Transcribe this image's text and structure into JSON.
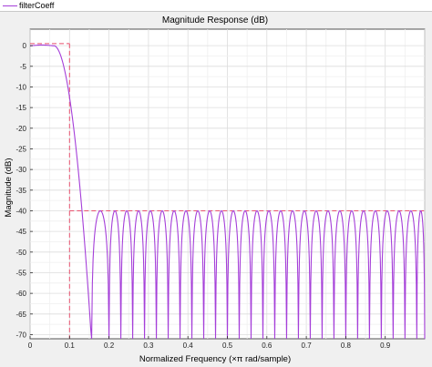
{
  "legend": {
    "label": "filterCoeff",
    "color": "#a53fd9"
  },
  "chart_data": {
    "type": "line",
    "title": "Magnitude Response (dB)",
    "xlabel": "Normalized Frequency (×π rad/sample)",
    "ylabel": "Magnitude (dB)",
    "xlim": [
      0,
      1
    ],
    "ylim": [
      -71,
      4
    ],
    "xticks": [
      0,
      0.1,
      0.2,
      0.3,
      0.4,
      0.5,
      0.6,
      0.7,
      0.8,
      0.9
    ],
    "xtick_labels": [
      "0",
      "0.1",
      "0.2",
      "0.3",
      "0.4",
      "0.5",
      "0.6",
      "0.7",
      "0.8",
      "0.9"
    ],
    "yticks": [
      0,
      -5,
      -10,
      -15,
      -20,
      -25,
      -30,
      -35,
      -40,
      -45,
      -50,
      -55,
      -60,
      -65,
      -70
    ],
    "ytick_labels": [
      "0",
      "-5",
      "-10",
      "-15",
      "-20",
      "-25",
      "-30",
      "-35",
      "-40",
      "-45",
      "-50",
      "-55",
      "-60",
      "-65",
      "-70"
    ],
    "grid": true,
    "series": [
      {
        "name": "filterCoeff",
        "color": "#a53fd9",
        "passband_edge": 0.1,
        "passband_ripple_db": 0.2,
        "stopband_start": 0.15,
        "stopband_level_db": -40,
        "stopband_lobe_peaks": [
          0.185,
          0.215,
          0.245,
          0.275,
          0.305,
          0.335,
          0.365,
          0.395,
          0.425,
          0.455,
          0.485,
          0.515,
          0.545,
          0.575,
          0.605,
          0.635,
          0.665,
          0.695,
          0.725,
          0.755,
          0.785,
          0.815,
          0.845,
          0.875,
          0.905,
          0.935,
          0.965,
          0.995
        ],
        "stopband_nulls": [
          0.156,
          0.2,
          0.23,
          0.26,
          0.29,
          0.32,
          0.35,
          0.38,
          0.41,
          0.44,
          0.47,
          0.5,
          0.53,
          0.56,
          0.59,
          0.62,
          0.65,
          0.68,
          0.71,
          0.74,
          0.77,
          0.8,
          0.83,
          0.86,
          0.89,
          0.92,
          0.95,
          0.98
        ]
      }
    ],
    "mask": {
      "color": "#e8506e",
      "passband": {
        "x": [
          0,
          0.1
        ],
        "y": 0.5
      },
      "edge_x": 0.1,
      "stopband": {
        "x": [
          0.1,
          1
        ],
        "y": -40
      }
    }
  }
}
